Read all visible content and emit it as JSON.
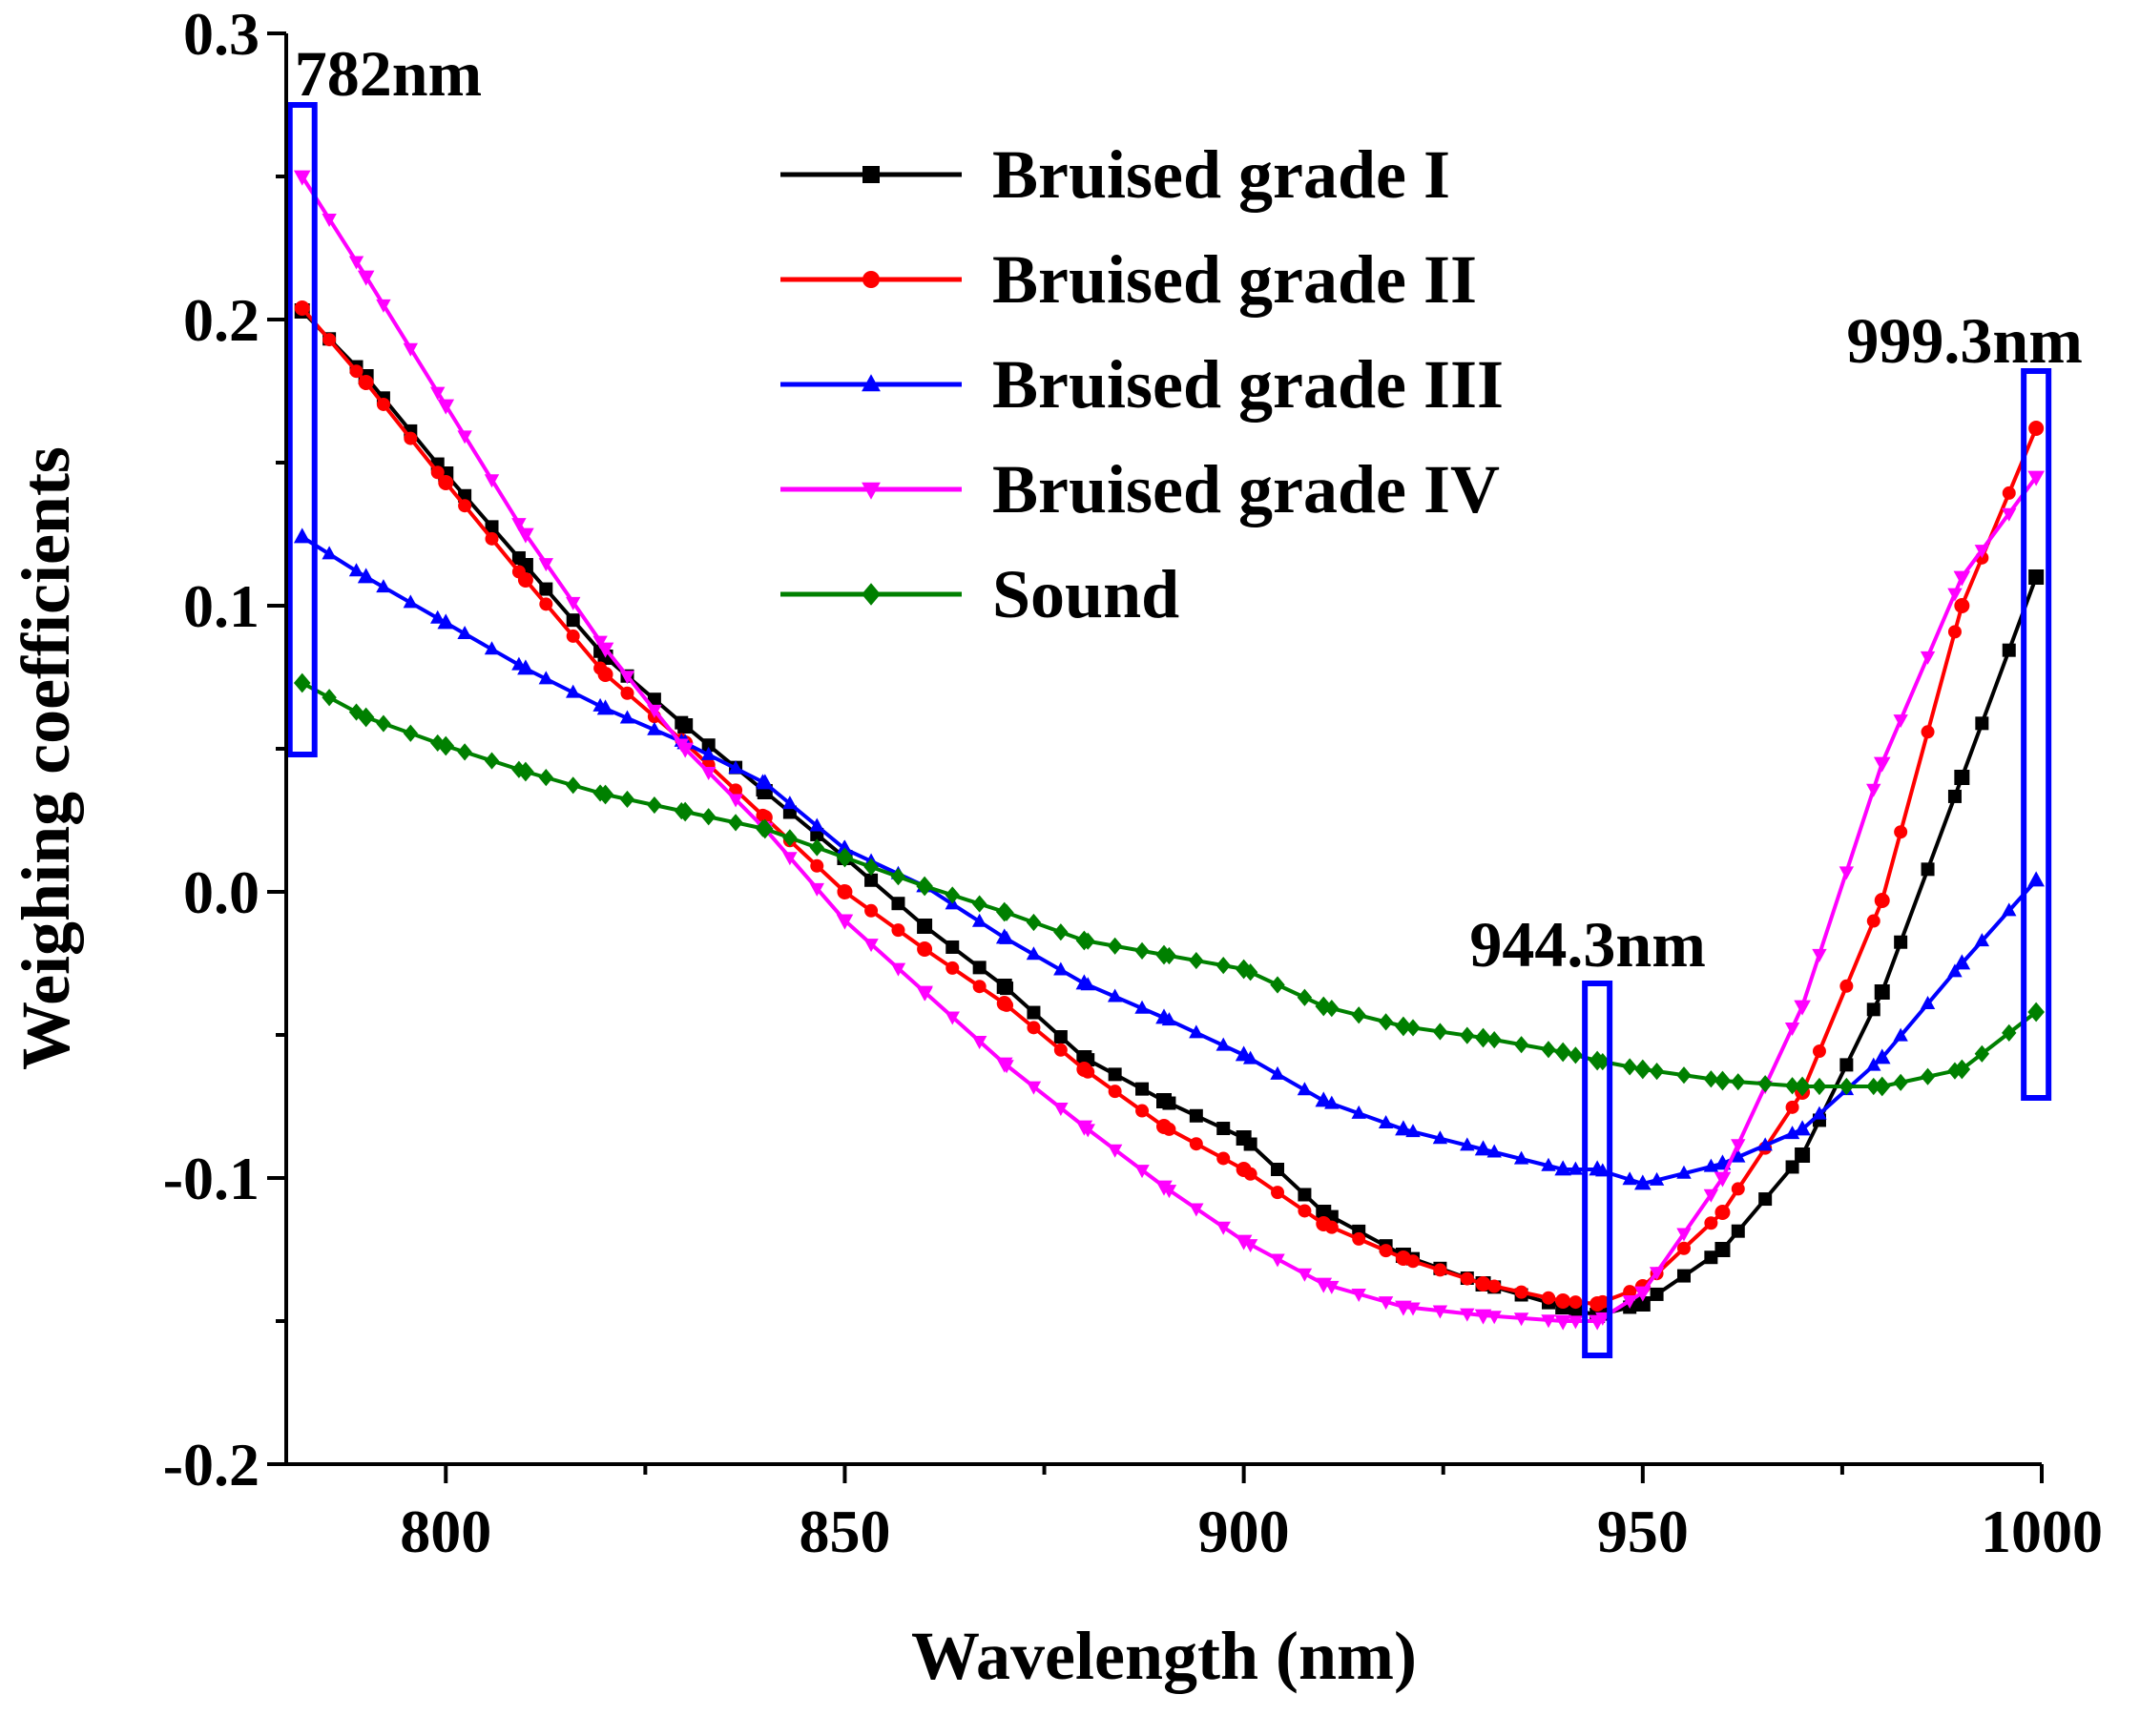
{
  "chart_data": {
    "type": "line",
    "title": "",
    "xlabel": "Wavelength (nm)",
    "ylabel": "Weighing coefficients",
    "xlim": [
      780,
      1000
    ],
    "ylim": [
      -0.2,
      0.3
    ],
    "xticks": [
      800,
      850,
      900,
      950,
      1000
    ],
    "xtick_labels": [
      "800",
      "850",
      "900",
      "950",
      "1000"
    ],
    "yticks": [
      -0.2,
      -0.1,
      0.0,
      0.1,
      0.2,
      0.3
    ],
    "ytick_labels": [
      "-0.2",
      "-0.1",
      "0.0",
      "0.1",
      "0.2",
      "0.3"
    ],
    "grid": false,
    "legend_position": "top-center",
    "series": [
      {
        "name": "Bruised grade I",
        "color": "#000000",
        "marker": "square",
        "x": [
          782,
          790,
          800,
          810,
          820,
          830,
          840,
          850,
          860,
          870,
          880,
          890,
          900,
          910,
          920,
          930,
          940,
          944.3,
          950,
          960,
          970,
          980,
          990,
          999.3
        ],
        "y": [
          0.203,
          0.18,
          0.146,
          0.114,
          0.082,
          0.058,
          0.035,
          0.012,
          -0.012,
          -0.033,
          -0.058,
          -0.073,
          -0.086,
          -0.112,
          -0.127,
          -0.137,
          -0.145,
          -0.148,
          -0.144,
          -0.125,
          -0.092,
          -0.035,
          0.04,
          0.11
        ]
      },
      {
        "name": "Bruised grade II",
        "color": "#ff0000",
        "marker": "circle",
        "x": [
          782,
          790,
          800,
          810,
          820,
          830,
          840,
          850,
          860,
          870,
          880,
          890,
          900,
          910,
          920,
          930,
          940,
          944.3,
          950,
          960,
          970,
          980,
          990,
          999.3
        ],
        "y": [
          0.204,
          0.178,
          0.143,
          0.109,
          0.076,
          0.052,
          0.026,
          0.0,
          -0.02,
          -0.039,
          -0.062,
          -0.082,
          -0.097,
          -0.116,
          -0.128,
          -0.137,
          -0.143,
          -0.144,
          -0.138,
          -0.112,
          -0.07,
          -0.003,
          0.1,
          0.162
        ]
      },
      {
        "name": "Bruised grade III",
        "color": "#0000ff",
        "marker": "triangle-up",
        "x": [
          782,
          790,
          800,
          810,
          820,
          830,
          840,
          850,
          860,
          870,
          880,
          890,
          900,
          910,
          920,
          930,
          940,
          944.3,
          950,
          960,
          970,
          980,
          990,
          999.3
        ],
        "y": [
          0.124,
          0.11,
          0.094,
          0.078,
          0.064,
          0.052,
          0.038,
          0.015,
          0.002,
          -0.016,
          -0.032,
          -0.044,
          -0.057,
          -0.073,
          -0.083,
          -0.09,
          -0.097,
          -0.097,
          -0.102,
          -0.095,
          -0.083,
          -0.058,
          -0.025,
          0.004
        ]
      },
      {
        "name": "Bruised grade IV",
        "color": "#ff00ff",
        "marker": "triangle-down",
        "x": [
          782,
          790,
          800,
          810,
          820,
          830,
          840,
          850,
          860,
          870,
          880,
          890,
          900,
          910,
          920,
          930,
          940,
          944.3,
          950,
          960,
          970,
          980,
          990,
          999.3
        ],
        "y": [
          0.25,
          0.215,
          0.17,
          0.125,
          0.085,
          0.05,
          0.022,
          -0.01,
          -0.035,
          -0.06,
          -0.082,
          -0.103,
          -0.122,
          -0.137,
          -0.145,
          -0.148,
          -0.15,
          -0.15,
          -0.14,
          -0.1,
          -0.04,
          0.045,
          0.11,
          0.145
        ]
      },
      {
        "name": "Sound",
        "color": "#008000",
        "marker": "diamond",
        "x": [
          782,
          790,
          800,
          810,
          820,
          830,
          840,
          850,
          860,
          870,
          880,
          890,
          900,
          910,
          920,
          930,
          940,
          944.3,
          950,
          960,
          970,
          980,
          990,
          999.3
        ],
        "y": [
          0.073,
          0.061,
          0.051,
          0.042,
          0.034,
          0.028,
          0.022,
          0.012,
          0.002,
          -0.007,
          -0.017,
          -0.022,
          -0.027,
          -0.04,
          -0.047,
          -0.051,
          -0.056,
          -0.059,
          -0.062,
          -0.066,
          -0.068,
          -0.068,
          -0.062,
          -0.042
        ]
      }
    ],
    "annotations": [
      {
        "label": "782nm",
        "x": 782,
        "y_range": [
          0.048,
          0.275
        ],
        "label_pos": "above"
      },
      {
        "label": "944.3nm",
        "x": 944.3,
        "y_range": [
          -0.162,
          -0.032
        ],
        "label_pos": "above"
      },
      {
        "label": "999.3nm",
        "x": 999.3,
        "y_range": [
          -0.072,
          0.182
        ],
        "label_pos": "above"
      }
    ],
    "annotation_color": "#0000ff"
  }
}
